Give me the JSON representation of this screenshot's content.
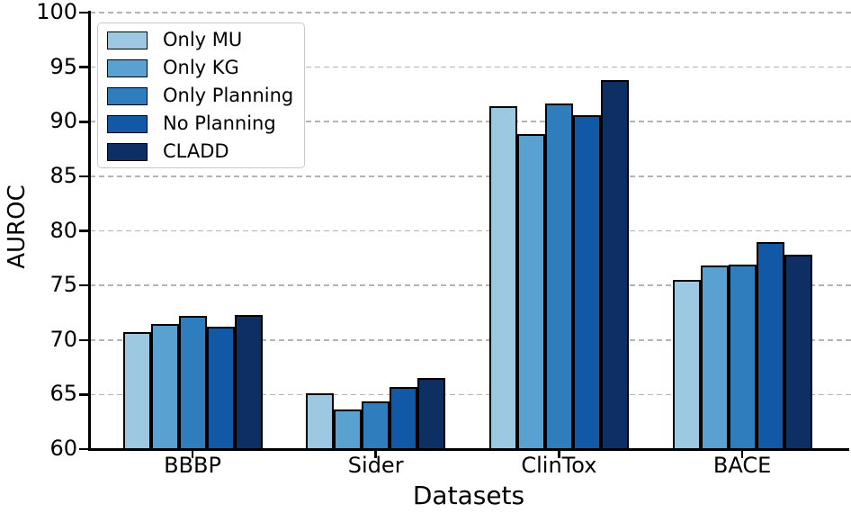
{
  "chart_data": {
    "type": "bar",
    "title": "",
    "xlabel": "Datasets",
    "ylabel": "AUROC",
    "categories": [
      "BBBP",
      "Sider",
      "ClinTox",
      "BACE"
    ],
    "series": [
      {
        "name": "Only MU",
        "color": "#9DC8E2",
        "values": [
          70.7,
          65.1,
          91.4,
          75.5
        ]
      },
      {
        "name": "Only KG",
        "color": "#59A1D0",
        "values": [
          71.5,
          63.6,
          88.9,
          76.8
        ]
      },
      {
        "name": "Only Planning",
        "color": "#2F7DBC",
        "values": [
          72.2,
          64.4,
          91.7,
          76.9
        ]
      },
      {
        "name": "No Planning",
        "color": "#1159A6",
        "values": [
          71.2,
          65.7,
          90.6,
          79.0
        ]
      },
      {
        "name": "CLADD",
        "color": "#0D2F63",
        "values": [
          72.3,
          66.5,
          93.8,
          77.8
        ]
      }
    ],
    "ylim": [
      60,
      100
    ],
    "yticks": [
      60,
      65,
      70,
      75,
      80,
      85,
      90,
      95,
      100
    ],
    "grid": "horizontal-dashed",
    "grid_color": "#b4b4b4",
    "bar_edge_color": "#000000",
    "text_color": "#000000",
    "legend_position": "upper-left"
  }
}
